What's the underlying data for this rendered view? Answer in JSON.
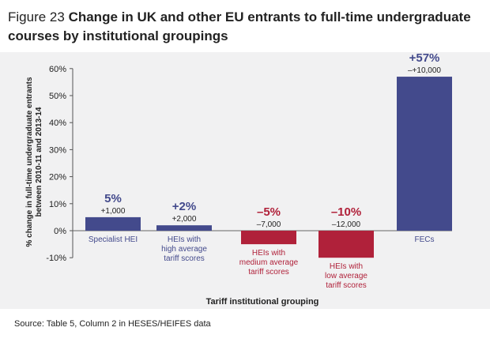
{
  "figure": {
    "prefix": "Figure 23",
    "title": "Change in UK and other EU entrants to full-time undergraduate courses by institutional groupings"
  },
  "source": "Source: Table 5, Column 2 in HESES/HEIFES data",
  "colors": {
    "positive": "#434a8c",
    "negative": "#b0213a",
    "panel": "#f1f1f2"
  },
  "chart_data": {
    "type": "bar",
    "title": "Change in UK and other EU entrants to full-time undergraduate courses by institutional groupings",
    "xlabel": "Tariff institutional grouping",
    "ylabel": [
      "% change in full-time undergraduate entrants",
      "between 2010-11 and 2013-14"
    ],
    "ylim": [
      -10,
      60
    ],
    "yticks": [
      -10,
      0,
      10,
      20,
      30,
      40,
      50,
      60
    ],
    "ytick_labels": [
      "-10%",
      "0%",
      "10%",
      "20%",
      "30%",
      "40%",
      "50%",
      "60%"
    ],
    "grid": false,
    "categories": [
      [
        "Specialist HEI"
      ],
      [
        "HEIs with",
        "high average",
        "tariff scores"
      ],
      [
        "HEIs with",
        "medium average",
        "tariff scores"
      ],
      [
        "HEIs with",
        "low average",
        "tariff scores"
      ],
      [
        "FECs"
      ]
    ],
    "values": [
      5,
      2,
      -5,
      -10,
      57
    ],
    "pct_labels": [
      "5%",
      "+2%",
      "–5%",
      "–10%",
      "+57%"
    ],
    "count_labels": [
      "+1,000",
      "+2,000",
      "–7,000",
      "–12,000",
      "–+10,000"
    ]
  }
}
